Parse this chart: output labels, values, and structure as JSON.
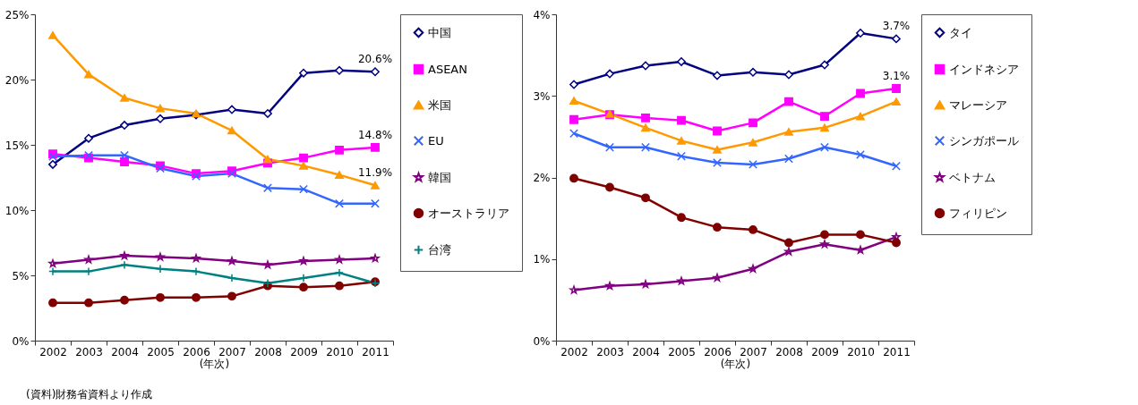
{
  "chart_data": [
    {
      "type": "line",
      "xlabel": "(年次)",
      "categories": [
        "2002",
        "2003",
        "2004",
        "2005",
        "2006",
        "2007",
        "2008",
        "2009",
        "2010",
        "2011"
      ],
      "ylim": [
        0,
        25
      ],
      "yticks": [
        {
          "value": 0,
          "label": "0%"
        },
        {
          "value": 5,
          "label": "5%"
        },
        {
          "value": 10,
          "label": "10%"
        },
        {
          "value": 15,
          "label": "15%"
        },
        {
          "value": 20,
          "label": "20%"
        },
        {
          "value": 25,
          "label": "25%"
        }
      ],
      "grid": false,
      "legend": "right",
      "line_style": "solid",
      "series": [
        {
          "name": "中国",
          "color": "#000080",
          "marker": "diamond",
          "values": [
            13.5,
            15.5,
            16.5,
            17.0,
            17.3,
            17.7,
            17.4,
            20.5,
            20.7,
            20.6
          ]
        },
        {
          "name": "ASEAN",
          "color": "#ff00ff",
          "marker": "square",
          "values": [
            14.3,
            14.0,
            13.7,
            13.4,
            12.8,
            13.0,
            13.6,
            14.0,
            14.6,
            14.8
          ]
        },
        {
          "name": "米国",
          "color": "#ff9900",
          "marker": "triangle",
          "values": [
            23.4,
            20.4,
            18.6,
            17.8,
            17.4,
            16.1,
            13.9,
            13.4,
            12.7,
            11.9
          ]
        },
        {
          "name": "EU",
          "color": "#3366ff",
          "marker": "cross",
          "values": [
            14.1,
            14.2,
            14.2,
            13.2,
            12.6,
            12.8,
            11.7,
            11.6,
            10.5,
            10.5
          ]
        },
        {
          "name": "韓国",
          "color": "#800080",
          "marker": "star",
          "values": [
            5.9,
            6.2,
            6.5,
            6.4,
            6.3,
            6.1,
            5.8,
            6.1,
            6.2,
            6.3
          ]
        },
        {
          "name": "オーストラリア",
          "color": "#800000",
          "marker": "circle",
          "values": [
            2.9,
            2.9,
            3.1,
            3.3,
            3.3,
            3.4,
            4.2,
            4.1,
            4.2,
            4.5
          ]
        },
        {
          "name": "台湾",
          "color": "#008080",
          "marker": "plus",
          "values": [
            5.3,
            5.3,
            5.8,
            5.5,
            5.3,
            4.8,
            4.4,
            4.8,
            5.2,
            4.4
          ]
        }
      ],
      "annotations": [
        {
          "text": "20.6%",
          "x": "2011",
          "y": 20.6
        },
        {
          "text": "14.8%",
          "x": "2011",
          "y": 14.8
        },
        {
          "text": "11.9%",
          "x": "2011",
          "y": 11.9
        },
        "(資料)財務省資料より作成"
      ]
    },
    {
      "type": "line",
      "xlabel": "(年次)",
      "categories": [
        "2002",
        "2003",
        "2004",
        "2005",
        "2006",
        "2007",
        "2008",
        "2009",
        "2010",
        "2011"
      ],
      "ylim": [
        0,
        4
      ],
      "yticks": [
        {
          "value": 0,
          "label": "0%"
        },
        {
          "value": 1,
          "label": "1%"
        },
        {
          "value": 2,
          "label": "2%"
        },
        {
          "value": 3,
          "label": "3%"
        },
        {
          "value": 4,
          "label": "4%"
        }
      ],
      "grid": false,
      "legend": "right",
      "line_style": "solid",
      "series": [
        {
          "name": "タイ",
          "color": "#000080",
          "marker": "diamond",
          "values": [
            3.14,
            3.27,
            3.37,
            3.42,
            3.25,
            3.29,
            3.26,
            3.38,
            3.77,
            3.7
          ]
        },
        {
          "name": "インドネシア",
          "color": "#ff00ff",
          "marker": "square",
          "values": [
            2.71,
            2.77,
            2.73,
            2.7,
            2.57,
            2.67,
            2.93,
            2.75,
            3.03,
            3.09
          ]
        },
        {
          "name": "マレーシア",
          "color": "#ff9900",
          "marker": "triangle",
          "values": [
            2.94,
            2.78,
            2.61,
            2.45,
            2.34,
            2.43,
            2.56,
            2.61,
            2.75,
            2.93
          ]
        },
        {
          "name": "シンガポール",
          "color": "#3366ff",
          "marker": "cross",
          "values": [
            2.54,
            2.37,
            2.37,
            2.26,
            2.18,
            2.16,
            2.23,
            2.37,
            2.28,
            2.14
          ]
        },
        {
          "name": "ベトナム",
          "color": "#800080",
          "marker": "star",
          "values": [
            0.62,
            0.67,
            0.69,
            0.73,
            0.77,
            0.88,
            1.09,
            1.18,
            1.11,
            1.27
          ]
        },
        {
          "name": "フィリピン",
          "color": "#800000",
          "marker": "circle",
          "values": [
            1.99,
            1.88,
            1.75,
            1.51,
            1.39,
            1.36,
            1.2,
            1.3,
            1.3,
            1.2
          ]
        }
      ],
      "annotations": [
        {
          "text": "3.7%",
          "x": "2011",
          "y": 3.7
        },
        {
          "text": "3.1%",
          "x": "2011",
          "y": 3.09
        }
      ]
    }
  ]
}
